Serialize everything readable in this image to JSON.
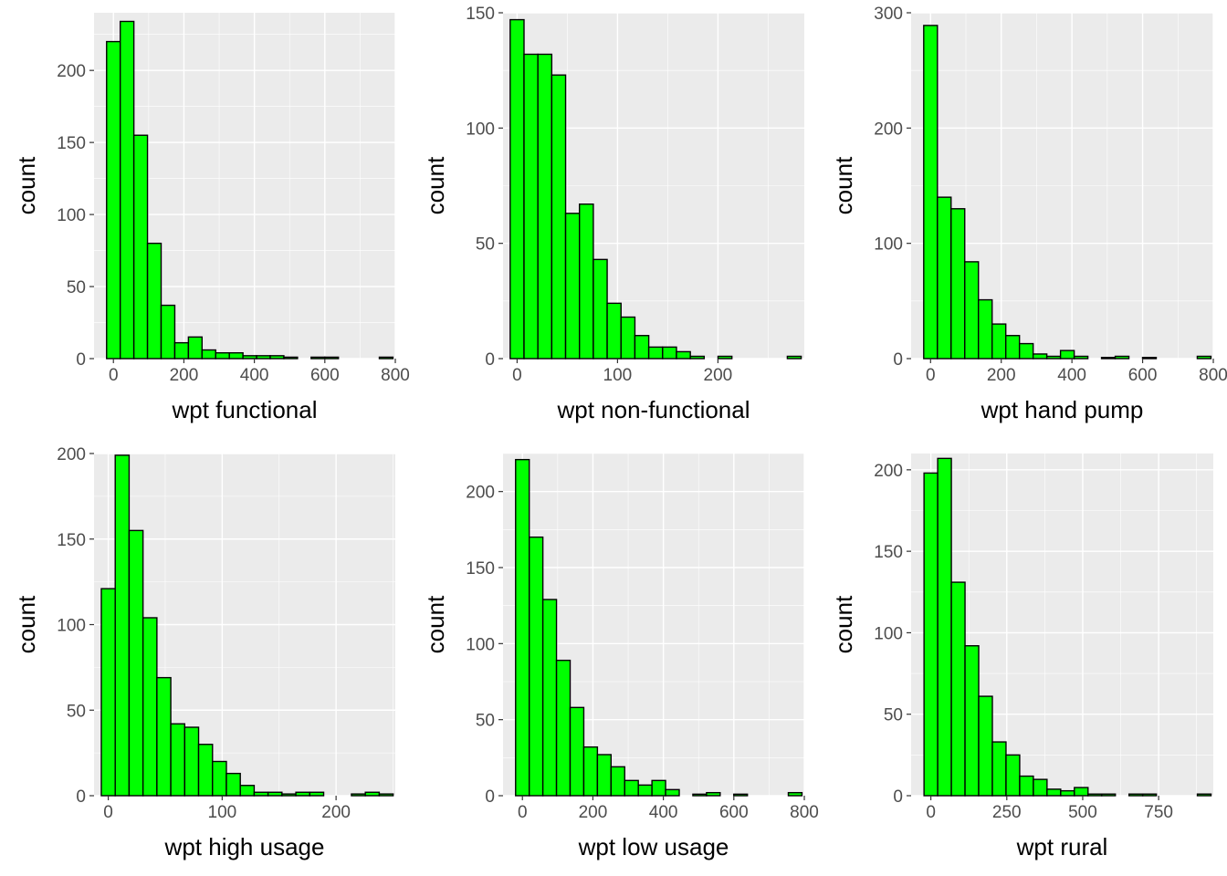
{
  "chart_data": [
    {
      "type": "bar",
      "xlabel": "wpt functional",
      "ylabel": "count",
      "xlim": [
        -55,
        800
      ],
      "ylim": [
        0,
        240
      ],
      "x_ticks": [
        0,
        200,
        400,
        600,
        800
      ],
      "y_ticks": [
        0,
        50,
        100,
        150,
        200
      ],
      "binwidth": 38.7,
      "bin_centers": [
        0,
        38.7,
        77.4,
        116.1,
        154.8,
        193.5,
        232.2,
        270.9,
        309.6,
        348.3,
        387,
        425.7,
        464.4,
        503.1,
        541.8,
        580.5,
        619.2,
        657.9,
        696.6,
        735.3,
        774
      ],
      "values": [
        220,
        234,
        155,
        80,
        37,
        11,
        15,
        6,
        4,
        4,
        2,
        2,
        2,
        1,
        0,
        1,
        1,
        0,
        0,
        0,
        1
      ]
    },
    {
      "type": "bar",
      "xlabel": "wpt non-functional",
      "ylabel": "count",
      "xlim": [
        -14,
        286
      ],
      "ylim": [
        0,
        150
      ],
      "x_ticks": [
        0,
        100,
        200
      ],
      "y_ticks": [
        0,
        50,
        100,
        150
      ],
      "binwidth": 13.8,
      "bin_centers": [
        0,
        13.8,
        27.6,
        41.4,
        55.2,
        69,
        82.8,
        96.6,
        110.4,
        124.2,
        138,
        151.8,
        165.6,
        179.4,
        193.2,
        207,
        220.8,
        234.6,
        248.4,
        262.2,
        276
      ],
      "values": [
        147,
        132,
        132,
        123,
        63,
        67,
        43,
        24,
        18,
        10,
        5,
        5,
        3,
        1,
        0,
        1,
        0,
        0,
        0,
        0,
        1
      ]
    },
    {
      "type": "bar",
      "xlabel": "wpt hand pump",
      "ylabel": "count",
      "xlim": [
        -55,
        800
      ],
      "ylim": [
        0,
        300
      ],
      "x_ticks": [
        0,
        200,
        400,
        600,
        800
      ],
      "y_ticks": [
        0,
        100,
        200,
        300
      ],
      "binwidth": 38.7,
      "bin_centers": [
        0,
        38.7,
        77.4,
        116.1,
        154.8,
        193.5,
        232.2,
        270.9,
        309.6,
        348.3,
        387,
        425.7,
        464.4,
        503.1,
        541.8,
        580.5,
        619.2,
        657.9,
        696.6,
        735.3,
        774
      ],
      "values": [
        289,
        140,
        130,
        84,
        51,
        30,
        20,
        13,
        4,
        2,
        7,
        2,
        0,
        1,
        2,
        0,
        1,
        0,
        0,
        0,
        2
      ]
    },
    {
      "type": "bar",
      "xlabel": "wpt high usage",
      "ylabel": "count",
      "xlim": [
        -12.5,
        252
      ],
      "ylim": [
        0,
        200
      ],
      "x_ticks": [
        0,
        100,
        200
      ],
      "y_ticks": [
        0,
        50,
        100,
        150,
        200
      ],
      "binwidth": 12.2,
      "bin_centers": [
        0,
        12.2,
        24.4,
        36.6,
        48.8,
        61,
        73.2,
        85.4,
        97.6,
        109.8,
        122,
        134.2,
        146.4,
        158.6,
        170.8,
        183,
        195.2,
        207.4,
        219.6,
        231.8,
        244
      ],
      "values": [
        121,
        199,
        155,
        104,
        69,
        42,
        40,
        30,
        20,
        13,
        6,
        2,
        2,
        1,
        2,
        2,
        0,
        0,
        1,
        2,
        1
      ]
    },
    {
      "type": "bar",
      "xlabel": "wpt low usage",
      "ylabel": "count",
      "xlim": [
        -55,
        800
      ],
      "ylim": [
        0,
        225
      ],
      "x_ticks": [
        0,
        200,
        400,
        600,
        800
      ],
      "y_ticks": [
        0,
        50,
        100,
        150,
        200
      ],
      "binwidth": 38.7,
      "bin_centers": [
        0,
        38.7,
        77.4,
        116.1,
        154.8,
        193.5,
        232.2,
        270.9,
        309.6,
        348.3,
        387,
        425.7,
        464.4,
        503.1,
        541.8,
        580.5,
        619.2,
        657.9,
        696.6,
        735.3,
        774
      ],
      "values": [
        221,
        170,
        129,
        89,
        58,
        32,
        27,
        19,
        10,
        7,
        10,
        4,
        0,
        1,
        2,
        0,
        1,
        0,
        0,
        0,
        2
      ]
    },
    {
      "type": "bar",
      "xlabel": "wpt rural",
      "ylabel": "count",
      "xlim": [
        -65,
        930
      ],
      "ylim": [
        0,
        210
      ],
      "x_ticks": [
        0,
        250,
        500,
        750
      ],
      "y_ticks": [
        0,
        50,
        100,
        150,
        200
      ],
      "binwidth": 45,
      "bin_centers": [
        0,
        45,
        90,
        135,
        180,
        225,
        270,
        315,
        360,
        405,
        450,
        495,
        540,
        585,
        630,
        675,
        720,
        765,
        810,
        855,
        900
      ],
      "values": [
        198,
        207,
        131,
        92,
        61,
        33,
        25,
        12,
        10,
        4,
        3,
        5,
        1,
        1,
        0,
        1,
        1,
        0,
        0,
        0,
        1
      ]
    }
  ]
}
